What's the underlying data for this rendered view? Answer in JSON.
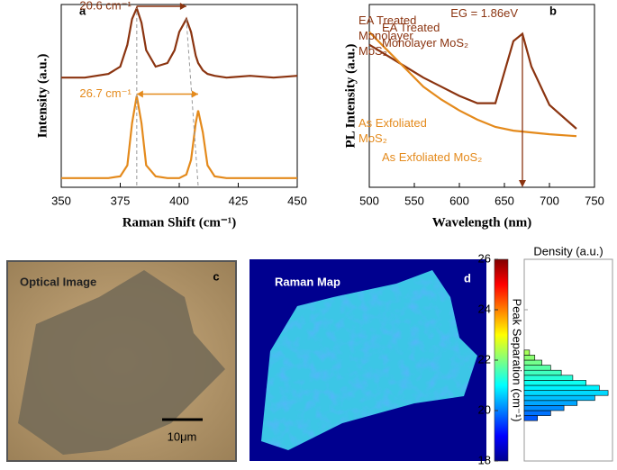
{
  "chart_data": [
    {
      "type": "line",
      "panel_label": "a",
      "xlabel": "Raman Shift (cm⁻¹)",
      "ylabel": "Intensity (a.u.)",
      "xlim": [
        350,
        450
      ],
      "xticks": [
        350,
        375,
        400,
        425,
        450
      ],
      "ylim": [
        0,
        1
      ],
      "x": [
        350,
        360,
        370,
        375,
        378,
        380,
        382,
        384,
        386,
        390,
        395,
        398,
        400,
        403,
        405,
        407,
        408,
        410,
        412,
        415,
        420,
        430,
        440,
        450
      ],
      "series": [
        {
          "name": "EA Treated Monolayer MoS₂",
          "color": "#8b3410",
          "values": [
            0.6,
            0.6,
            0.62,
            0.66,
            0.78,
            0.92,
            0.98,
            0.9,
            0.75,
            0.66,
            0.68,
            0.75,
            0.85,
            0.92,
            0.85,
            0.72,
            0.68,
            0.64,
            0.62,
            0.61,
            0.6,
            0.61,
            0.6,
            0.61
          ]
        },
        {
          "name": "As Exfoliated MoS₂",
          "color": "#e48a1c",
          "values": [
            0.05,
            0.05,
            0.05,
            0.06,
            0.12,
            0.35,
            0.5,
            0.35,
            0.12,
            0.06,
            0.05,
            0.05,
            0.05,
            0.07,
            0.15,
            0.35,
            0.42,
            0.3,
            0.12,
            0.06,
            0.05,
            0.05,
            0.05,
            0.05
          ]
        }
      ],
      "annotations": [
        "20.6 cm⁻¹",
        "26.7 cm⁻¹"
      ]
    },
    {
      "type": "line",
      "panel_label": "b",
      "xlabel": "Wavelength (nm)",
      "ylabel": "PL Intensity (a.u.)",
      "xlim": [
        500,
        750
      ],
      "xticks": [
        500,
        550,
        600,
        650,
        700,
        750
      ],
      "ylim": [
        0,
        1
      ],
      "x": [
        500,
        520,
        540,
        560,
        580,
        600,
        620,
        640,
        660,
        670,
        680,
        700,
        730
      ],
      "series": [
        {
          "name": "EA Treated Monolayer MoS₂",
          "color": "#8b3410",
          "values": [
            0.78,
            0.72,
            0.66,
            0.6,
            0.55,
            0.5,
            0.46,
            0.46,
            0.8,
            0.84,
            0.66,
            0.45,
            0.32
          ]
        },
        {
          "name": "As Exfoliated MoS₂",
          "color": "#e48a1c",
          "values": [
            0.85,
            0.75,
            0.65,
            0.55,
            0.48,
            0.42,
            0.37,
            0.33,
            0.31,
            0.305,
            0.3,
            0.29,
            0.28
          ]
        }
      ],
      "annotations": [
        "EG = 1.86eV"
      ]
    },
    {
      "type": "histogram",
      "xlabel": "Density (a.u.)",
      "ylabel": "Peak Separation (cm⁻¹)",
      "ylim": [
        18,
        26
      ],
      "yticks": [
        18,
        20,
        22,
        24,
        26
      ],
      "xlim": [
        0,
        1
      ],
      "bins": [
        19.6,
        19.8,
        20.0,
        20.2,
        20.4,
        20.6,
        20.8,
        21.0,
        21.2,
        21.4,
        21.6,
        21.8,
        22.0,
        22.2,
        22.4
      ],
      "counts": [
        0.15,
        0.3,
        0.45,
        0.6,
        0.8,
        0.95,
        0.85,
        0.7,
        0.55,
        0.42,
        0.3,
        0.2,
        0.12,
        0.06
      ]
    }
  ],
  "images": {
    "optical": {
      "panel_label": "c",
      "title": "Optical Image",
      "scale_bar": "10μm"
    },
    "raman_map": {
      "panel_label": "d",
      "title": "Raman Map"
    }
  }
}
